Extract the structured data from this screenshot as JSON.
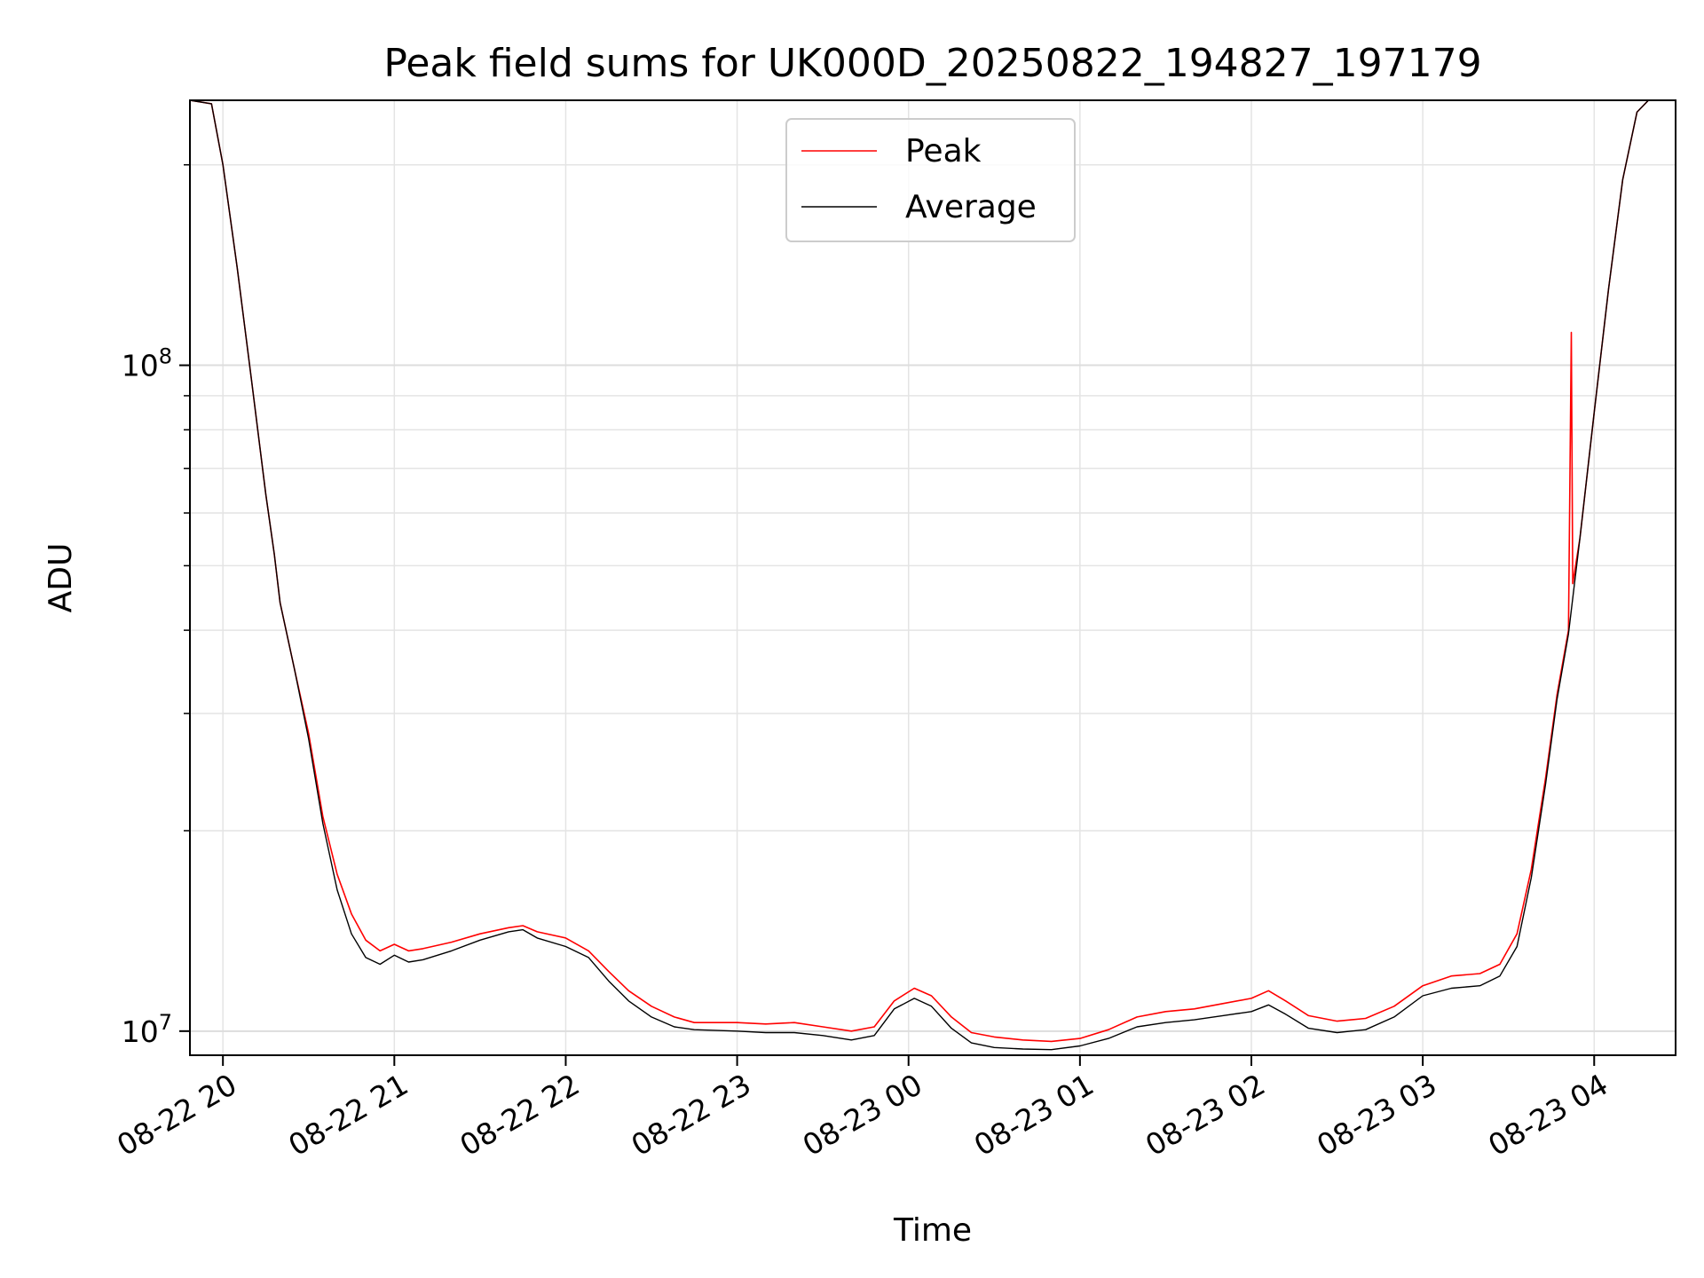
{
  "chart_data": {
    "type": "line",
    "title": "Peak field sums for UK000D_20250822_194827_197179",
    "xlabel": "Time",
    "ylabel": "ADU",
    "y_scale": "log",
    "ylim": [
      9200000,
      250000000
    ],
    "xlim": [
      "2025-08-22T19:48:27",
      "2025-08-23T04:28:30"
    ],
    "grid": true,
    "legend_position": "top-center",
    "x_ticks": [
      {
        "t": "2025-08-22T20:00",
        "label": "08-22 20"
      },
      {
        "t": "2025-08-22T21:00",
        "label": "08-22 21"
      },
      {
        "t": "2025-08-22T22:00",
        "label": "08-22 22"
      },
      {
        "t": "2025-08-22T23:00",
        "label": "08-22 23"
      },
      {
        "t": "2025-08-23T00:00",
        "label": "08-23 00"
      },
      {
        "t": "2025-08-23T01:00",
        "label": "08-23 01"
      },
      {
        "t": "2025-08-23T02:00",
        "label": "08-23 02"
      },
      {
        "t": "2025-08-23T03:00",
        "label": "08-23 03"
      },
      {
        "t": "2025-08-23T04:00",
        "label": "08-23 04"
      }
    ],
    "y_major_ticks": [
      {
        "value": 10000000,
        "base": "10",
        "exp": "7"
      },
      {
        "value": 100000000,
        "base": "10",
        "exp": "8"
      }
    ],
    "y_minor_ticks": [
      20000000,
      30000000,
      40000000,
      50000000,
      60000000,
      70000000,
      80000000,
      90000000,
      200000000
    ],
    "series": [
      {
        "name": "Peak",
        "color": "#ff0000",
        "points": [
          [
            "2025-08-22T19:48:27",
            250000000
          ],
          [
            "2025-08-22T19:56:00",
            247000000
          ],
          [
            "2025-08-22T20:00:00",
            200000000
          ],
          [
            "2025-08-22T20:05:00",
            140000000
          ],
          [
            "2025-08-22T20:10:00",
            95000000
          ],
          [
            "2025-08-22T20:15:00",
            64000000
          ],
          [
            "2025-08-22T20:18:00",
            52000000
          ],
          [
            "2025-08-22T20:20:00",
            44000000
          ],
          [
            "2025-08-22T20:25:00",
            35000000
          ],
          [
            "2025-08-22T20:30:00",
            28000000
          ],
          [
            "2025-08-22T20:35:00",
            21000000
          ],
          [
            "2025-08-22T20:40:00",
            17200000
          ],
          [
            "2025-08-22T20:45:00",
            15000000
          ],
          [
            "2025-08-22T20:50:00",
            13700000
          ],
          [
            "2025-08-22T20:55:00",
            13200000
          ],
          [
            "2025-08-22T21:00:00",
            13500000
          ],
          [
            "2025-08-22T21:05:00",
            13200000
          ],
          [
            "2025-08-22T21:10:00",
            13300000
          ],
          [
            "2025-08-22T21:20:00",
            13600000
          ],
          [
            "2025-08-22T21:30:00",
            14000000
          ],
          [
            "2025-08-22T21:40:00",
            14300000
          ],
          [
            "2025-08-22T21:45:00",
            14400000
          ],
          [
            "2025-08-22T21:50:00",
            14100000
          ],
          [
            "2025-08-22T22:00:00",
            13800000
          ],
          [
            "2025-08-22T22:08:00",
            13200000
          ],
          [
            "2025-08-22T22:15:00",
            12300000
          ],
          [
            "2025-08-22T22:22:00",
            11500000
          ],
          [
            "2025-08-22T22:30:00",
            10900000
          ],
          [
            "2025-08-22T22:38:00",
            10500000
          ],
          [
            "2025-08-22T22:45:00",
            10300000
          ],
          [
            "2025-08-22T23:00:00",
            10300000
          ],
          [
            "2025-08-22T23:10:00",
            10250000
          ],
          [
            "2025-08-22T23:20:00",
            10300000
          ],
          [
            "2025-08-22T23:30:00",
            10150000
          ],
          [
            "2025-08-22T23:40:00",
            10000000
          ],
          [
            "2025-08-22T23:48:00",
            10150000
          ],
          [
            "2025-08-22T23:55:00",
            11100000
          ],
          [
            "2025-08-23T00:02:00",
            11600000
          ],
          [
            "2025-08-23T00:08:00",
            11300000
          ],
          [
            "2025-08-23T00:15:00",
            10500000
          ],
          [
            "2025-08-23T00:22:00",
            9950000
          ],
          [
            "2025-08-23T00:30:00",
            9800000
          ],
          [
            "2025-08-23T00:40:00",
            9700000
          ],
          [
            "2025-08-23T00:50:00",
            9650000
          ],
          [
            "2025-08-23T01:00:00",
            9750000
          ],
          [
            "2025-08-23T01:10:00",
            10050000
          ],
          [
            "2025-08-23T01:20:00",
            10500000
          ],
          [
            "2025-08-23T01:30:00",
            10700000
          ],
          [
            "2025-08-23T01:40:00",
            10800000
          ],
          [
            "2025-08-23T01:50:00",
            11000000
          ],
          [
            "2025-08-23T02:00:00",
            11200000
          ],
          [
            "2025-08-23T02:06:00",
            11500000
          ],
          [
            "2025-08-23T02:12:00",
            11100000
          ],
          [
            "2025-08-23T02:20:00",
            10550000
          ],
          [
            "2025-08-23T02:30:00",
            10350000
          ],
          [
            "2025-08-23T02:40:00",
            10450000
          ],
          [
            "2025-08-23T02:50:00",
            10900000
          ],
          [
            "2025-08-23T03:00:00",
            11700000
          ],
          [
            "2025-08-23T03:10:00",
            12100000
          ],
          [
            "2025-08-23T03:20:00",
            12200000
          ],
          [
            "2025-08-23T03:27:00",
            12600000
          ],
          [
            "2025-08-23T03:33:00",
            14000000
          ],
          [
            "2025-08-23T03:38:00",
            17500000
          ],
          [
            "2025-08-23T03:43:00",
            24000000
          ],
          [
            "2025-08-23T03:47:00",
            32000000
          ],
          [
            "2025-08-23T03:51:00",
            40000000
          ],
          [
            "2025-08-23T03:52:00",
            112000000
          ],
          [
            "2025-08-23T03:52:30",
            47000000
          ],
          [
            "2025-08-23T03:55:00",
            55000000
          ],
          [
            "2025-08-23T04:00:00",
            85000000
          ],
          [
            "2025-08-23T04:05:00",
            130000000
          ],
          [
            "2025-08-23T04:10:00",
            190000000
          ],
          [
            "2025-08-23T04:15:00",
            240000000
          ],
          [
            "2025-08-23T04:19:00",
            250000000
          ],
          [
            "2025-08-23T04:28:30",
            250000000
          ]
        ]
      },
      {
        "name": "Average",
        "color": "#000000",
        "points": [
          [
            "2025-08-22T19:48:27",
            250000000
          ],
          [
            "2025-08-22T19:56:00",
            247000000
          ],
          [
            "2025-08-22T20:00:00",
            200000000
          ],
          [
            "2025-08-22T20:05:00",
            140000000
          ],
          [
            "2025-08-22T20:10:00",
            95000000
          ],
          [
            "2025-08-22T20:15:00",
            64000000
          ],
          [
            "2025-08-22T20:18:00",
            52000000
          ],
          [
            "2025-08-22T20:20:00",
            44000000
          ],
          [
            "2025-08-22T20:25:00",
            35000000
          ],
          [
            "2025-08-22T20:30:00",
            27500000
          ],
          [
            "2025-08-22T20:35:00",
            20500000
          ],
          [
            "2025-08-22T20:40:00",
            16300000
          ],
          [
            "2025-08-22T20:45:00",
            14000000
          ],
          [
            "2025-08-22T20:50:00",
            12900000
          ],
          [
            "2025-08-22T20:55:00",
            12600000
          ],
          [
            "2025-08-22T21:00:00",
            13000000
          ],
          [
            "2025-08-22T21:05:00",
            12700000
          ],
          [
            "2025-08-22T21:10:00",
            12800000
          ],
          [
            "2025-08-22T21:20:00",
            13200000
          ],
          [
            "2025-08-22T21:30:00",
            13700000
          ],
          [
            "2025-08-22T21:40:00",
            14100000
          ],
          [
            "2025-08-22T21:45:00",
            14200000
          ],
          [
            "2025-08-22T21:50:00",
            13800000
          ],
          [
            "2025-08-22T22:00:00",
            13400000
          ],
          [
            "2025-08-22T22:08:00",
            12900000
          ],
          [
            "2025-08-22T22:15:00",
            11900000
          ],
          [
            "2025-08-22T22:22:00",
            11100000
          ],
          [
            "2025-08-22T22:30:00",
            10500000
          ],
          [
            "2025-08-22T22:38:00",
            10150000
          ],
          [
            "2025-08-22T22:45:00",
            10050000
          ],
          [
            "2025-08-22T23:00:00",
            10000000
          ],
          [
            "2025-08-22T23:10:00",
            9950000
          ],
          [
            "2025-08-22T23:20:00",
            9950000
          ],
          [
            "2025-08-22T23:30:00",
            9850000
          ],
          [
            "2025-08-22T23:40:00",
            9700000
          ],
          [
            "2025-08-22T23:48:00",
            9850000
          ],
          [
            "2025-08-22T23:55:00",
            10800000
          ],
          [
            "2025-08-23T00:02:00",
            11200000
          ],
          [
            "2025-08-23T00:08:00",
            10900000
          ],
          [
            "2025-08-23T00:15:00",
            10100000
          ],
          [
            "2025-08-23T00:22:00",
            9600000
          ],
          [
            "2025-08-23T00:30:00",
            9450000
          ],
          [
            "2025-08-23T00:40:00",
            9400000
          ],
          [
            "2025-08-23T00:50:00",
            9380000
          ],
          [
            "2025-08-23T01:00:00",
            9500000
          ],
          [
            "2025-08-23T01:10:00",
            9750000
          ],
          [
            "2025-08-23T01:20:00",
            10150000
          ],
          [
            "2025-08-23T01:30:00",
            10300000
          ],
          [
            "2025-08-23T01:40:00",
            10400000
          ],
          [
            "2025-08-23T01:50:00",
            10550000
          ],
          [
            "2025-08-23T02:00:00",
            10700000
          ],
          [
            "2025-08-23T02:06:00",
            10950000
          ],
          [
            "2025-08-23T02:12:00",
            10600000
          ],
          [
            "2025-08-23T02:20:00",
            10100000
          ],
          [
            "2025-08-23T02:30:00",
            9950000
          ],
          [
            "2025-08-23T02:40:00",
            10050000
          ],
          [
            "2025-08-23T02:50:00",
            10500000
          ],
          [
            "2025-08-23T03:00:00",
            11300000
          ],
          [
            "2025-08-23T03:10:00",
            11600000
          ],
          [
            "2025-08-23T03:20:00",
            11700000
          ],
          [
            "2025-08-23T03:27:00",
            12100000
          ],
          [
            "2025-08-23T03:33:00",
            13400000
          ],
          [
            "2025-08-23T03:38:00",
            17000000
          ],
          [
            "2025-08-23T03:43:00",
            23500000
          ],
          [
            "2025-08-23T03:47:00",
            31500000
          ],
          [
            "2025-08-23T03:51:00",
            39500000
          ],
          [
            "2025-08-23T03:55:00",
            55000000
          ],
          [
            "2025-08-23T04:00:00",
            85000000
          ],
          [
            "2025-08-23T04:05:00",
            130000000
          ],
          [
            "2025-08-23T04:10:00",
            190000000
          ],
          [
            "2025-08-23T04:15:00",
            240000000
          ],
          [
            "2025-08-23T04:19:00",
            250000000
          ],
          [
            "2025-08-23T04:28:30",
            250000000
          ]
        ]
      }
    ]
  }
}
